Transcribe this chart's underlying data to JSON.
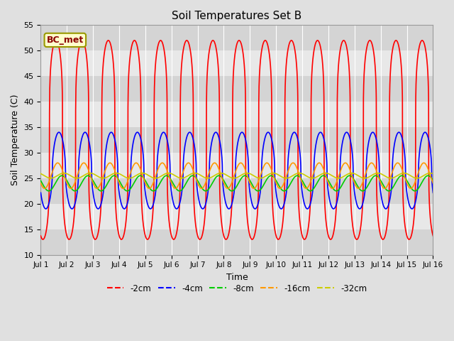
{
  "title": "Soil Temperatures Set B",
  "xlabel": "Time",
  "ylabel": "Soil Temperature (C)",
  "ylim": [
    10,
    55
  ],
  "xlim": [
    0,
    15
  ],
  "annotation": "BC_met",
  "series_labels": [
    "-2cm",
    "-4cm",
    "-8cm",
    "-16cm",
    "-32cm"
  ],
  "series_colors": [
    "#ff0000",
    "#0000ff",
    "#00cc00",
    "#ff9900",
    "#cccc00"
  ],
  "xtick_positions": [
    0,
    1,
    2,
    3,
    4,
    5,
    6,
    7,
    8,
    9,
    10,
    11,
    12,
    13,
    14,
    15
  ],
  "xtick_labels": [
    "Jul 1",
    "Jul 2",
    "Jul 3",
    "Jul 4",
    "Jul 5",
    "Jul 6",
    "Jul 7",
    "Jul 8",
    "Jul 9",
    "Jul 10",
    "Jul 11",
    "Jul 12",
    "Jul 13",
    "Jul 14",
    "Jul 15",
    "Jul 16"
  ],
  "ytick_positions": [
    10,
    15,
    20,
    25,
    30,
    35,
    40,
    45,
    50,
    55
  ],
  "mean_2cm": 32.5,
  "amp_2cm": 19.5,
  "mean_4cm": 26.5,
  "amp_4cm": 7.5,
  "mean_8cm": 24.0,
  "amp_8cm": 1.5,
  "mean_16cm": 25.5,
  "amp_16cm": 2.5,
  "mean_32cm": 25.5,
  "amp_32cm": 0.5,
  "phase_2cm": -2.1,
  "phase_4cm": -2.8,
  "phase_8cm": -3.5,
  "phase_16cm": -2.5,
  "phase_32cm": -4.0,
  "sharpness_2cm": 4.0,
  "sharpness_4cm": 2.0,
  "band_colors": [
    "#d4d4d4",
    "#e8e8e8"
  ],
  "fig_bg": "#e0e0e0",
  "grid_color": "#ffffff"
}
